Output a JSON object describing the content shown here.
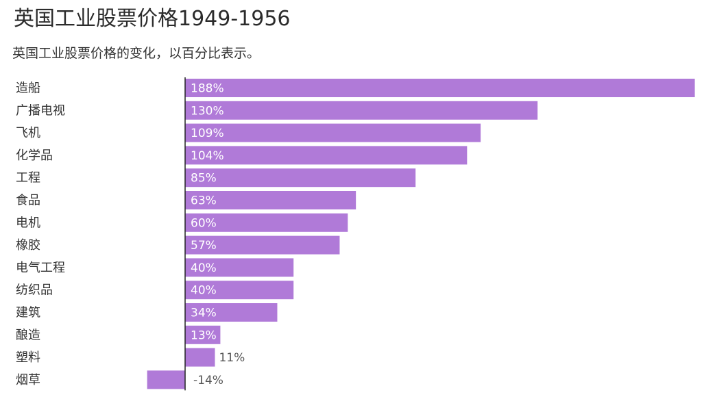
{
  "chart_data": {
    "type": "bar",
    "orientation": "horizontal",
    "title": "英国工业股票价格1949-1956",
    "subtitle": "英国工业股票价格的变化，以百分比表示。",
    "categories": [
      "造船",
      "广播电视",
      "飞机",
      "化学品",
      "工程",
      "食品",
      "电机",
      "橡胶",
      "电气工程",
      "纺织品",
      "建筑",
      "酿造",
      "塑料",
      "烟草"
    ],
    "values": [
      188,
      130,
      109,
      104,
      85,
      63,
      60,
      57,
      40,
      40,
      34,
      13,
      11,
      -14
    ],
    "value_labels": [
      "188%",
      "130%",
      "109%",
      "104%",
      "85%",
      "63%",
      "60%",
      "57%",
      "40%",
      "40%",
      "34%",
      "13%",
      "11%",
      "-14%"
    ],
    "xlim": [
      -14,
      188
    ],
    "grid": false,
    "bar_color": "#b07ad8",
    "label_color_inside": "#ffffff",
    "label_color_outside": "#555555"
  }
}
